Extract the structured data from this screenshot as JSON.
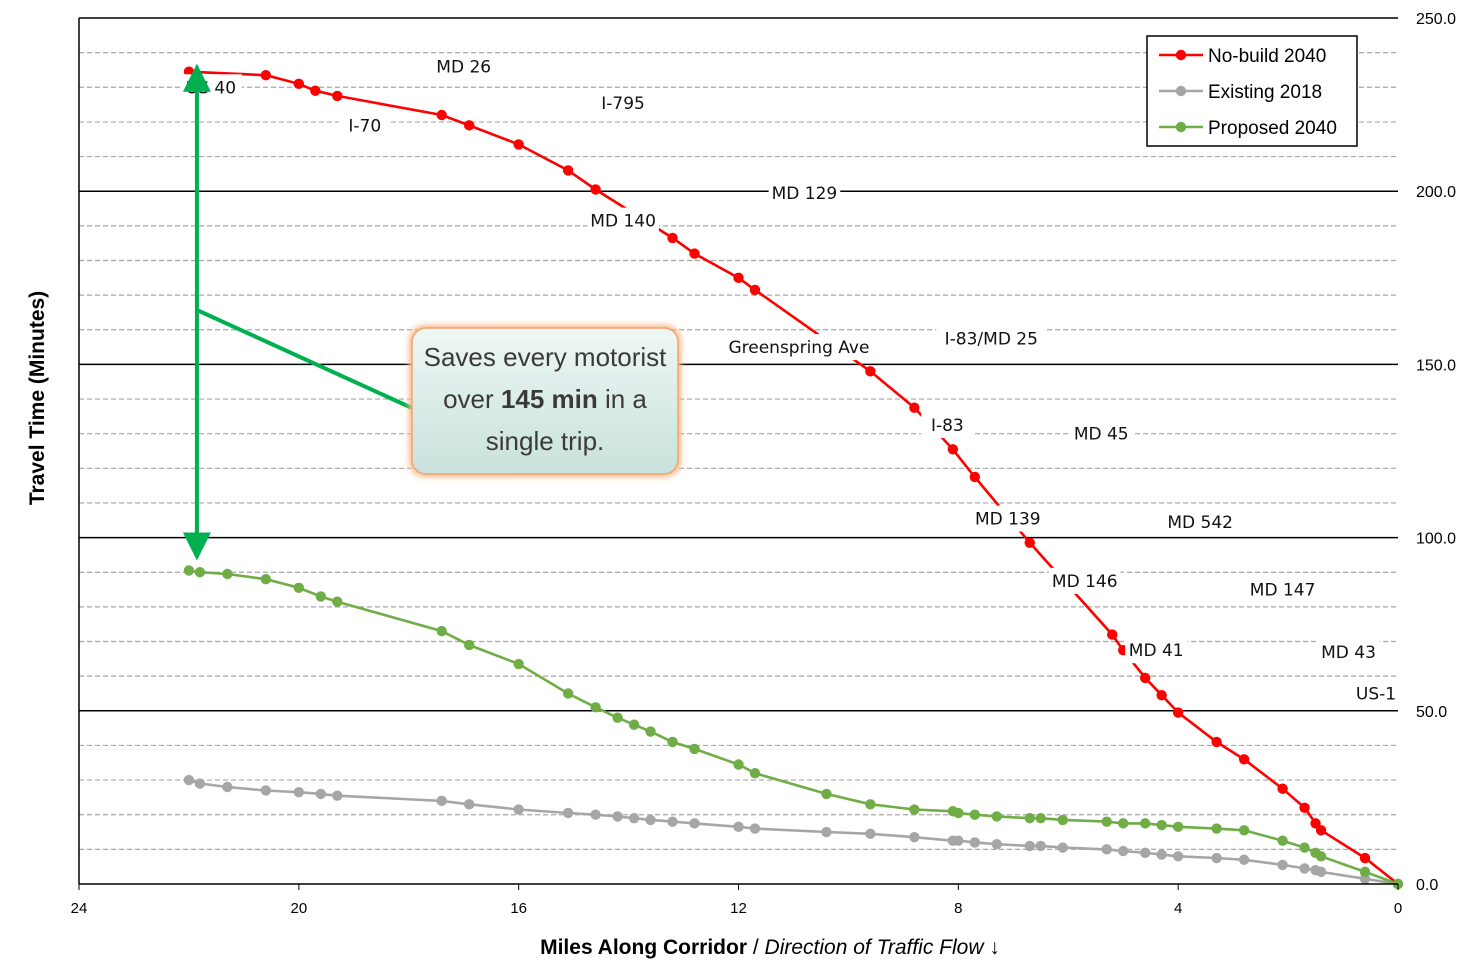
{
  "chart_data": {
    "type": "line",
    "title": "",
    "xlabel": {
      "bold": "Miles Along Corridor",
      "sep": " / ",
      "italic": "Direction of Traffic Flow",
      "arrow": "↓"
    },
    "ylabel": "Travel Time (Minutes)",
    "xlim": [
      24,
      0
    ],
    "ylim": [
      0,
      250
    ],
    "x_ticks": [
      "24",
      "20",
      "16",
      "12",
      "8",
      "4",
      "0"
    ],
    "y_ticks": [
      "0.0",
      "50.0",
      "100.0",
      "150.0",
      "200.0",
      "250.0"
    ],
    "grid": "major solid every 50, minor dashed every 10",
    "legend": {
      "position": "top-right",
      "entries": [
        "No-build 2040",
        "Existing 2018",
        "Proposed 2040"
      ]
    },
    "series": [
      {
        "name": "No-build 2040",
        "color": "#ff0000",
        "x": [
          22.0,
          20.6,
          20.0,
          19.7,
          19.3,
          17.4,
          16.9,
          16.0,
          15.1,
          14.6,
          13.2,
          12.8,
          12.0,
          11.7,
          9.6,
          8.8,
          8.1,
          7.7,
          6.7,
          5.2,
          5.0,
          4.6,
          4.3,
          4.0,
          3.3,
          2.8,
          2.1,
          1.7,
          1.5,
          1.4,
          0.6,
          0.0
        ],
        "y": [
          234.5,
          233.5,
          231.0,
          229.0,
          227.5,
          222.0,
          219.0,
          213.5,
          206.0,
          200.5,
          186.5,
          182.0,
          175.0,
          171.5,
          148.0,
          137.5,
          125.5,
          117.5,
          98.5,
          72.0,
          67.5,
          59.5,
          54.5,
          49.5,
          41.0,
          36.0,
          27.5,
          22.0,
          17.5,
          15.5,
          7.5,
          0.0
        ]
      },
      {
        "name": "Existing 2018",
        "color": "#a6a6a6",
        "x": [
          22.0,
          21.8,
          21.3,
          20.6,
          20.0,
          19.6,
          19.3,
          17.4,
          16.9,
          16.0,
          15.1,
          14.6,
          14.2,
          13.9,
          13.6,
          13.2,
          12.8,
          12.0,
          11.7,
          10.4,
          9.6,
          8.8,
          8.1,
          8.0,
          7.7,
          7.3,
          6.7,
          6.5,
          6.1,
          5.3,
          5.0,
          4.6,
          4.3,
          4.0,
          3.3,
          2.8,
          2.1,
          1.7,
          1.5,
          1.4,
          0.6,
          0.0
        ],
        "y": [
          30.0,
          29.0,
          28.0,
          27.0,
          26.5,
          26.0,
          25.5,
          24.0,
          23.0,
          21.5,
          20.5,
          20.0,
          19.5,
          19.0,
          18.5,
          18.0,
          17.5,
          16.5,
          16.0,
          15.0,
          14.5,
          13.5,
          12.5,
          12.5,
          12.0,
          11.5,
          11.0,
          11.0,
          10.5,
          10.0,
          9.5,
          9.0,
          8.5,
          8.0,
          7.5,
          7.0,
          5.5,
          4.5,
          4.0,
          3.5,
          1.5,
          0.0
        ]
      },
      {
        "name": "Proposed 2040",
        "color": "#70ad47",
        "x": [
          22.0,
          21.8,
          21.3,
          20.6,
          20.0,
          19.6,
          19.3,
          17.4,
          16.9,
          16.0,
          15.1,
          14.6,
          14.2,
          13.9,
          13.6,
          13.2,
          12.8,
          12.0,
          11.7,
          10.4,
          9.6,
          8.8,
          8.1,
          8.0,
          7.7,
          7.3,
          6.7,
          6.5,
          6.1,
          5.3,
          5.0,
          4.6,
          4.3,
          4.0,
          3.3,
          2.8,
          2.1,
          1.7,
          1.5,
          1.4,
          0.6,
          0.0
        ],
        "y": [
          90.5,
          90.0,
          89.5,
          88.0,
          85.5,
          83.0,
          81.5,
          73.0,
          69.0,
          63.5,
          55.0,
          51.0,
          48.0,
          46.0,
          44.0,
          41.0,
          39.0,
          34.5,
          32.0,
          26.0,
          23.0,
          21.5,
          21.0,
          20.5,
          20.0,
          19.5,
          19.0,
          19.0,
          18.5,
          18.0,
          17.5,
          17.5,
          17.0,
          16.5,
          16.0,
          15.5,
          12.5,
          10.5,
          9.0,
          8.0,
          3.5,
          0.0
        ]
      }
    ],
    "annotations": {
      "roads": [
        {
          "label": "US 40",
          "x": 21.6,
          "y": 230.0
        },
        {
          "label": "MD 26",
          "x": 17.0,
          "y": 236.0
        },
        {
          "label": "I-70",
          "x": 18.8,
          "y": 219.0
        },
        {
          "label": "I-795",
          "x": 14.1,
          "y": 225.5
        },
        {
          "label": "MD 129",
          "x": 10.8,
          "y": 199.5
        },
        {
          "label": "MD 140",
          "x": 14.1,
          "y": 191.5
        },
        {
          "label": "Greenspring Ave",
          "x": 10.9,
          "y": 155.0
        },
        {
          "label": "I-83/MD 25",
          "x": 7.4,
          "y": 157.5
        },
        {
          "label": "I-83",
          "x": 8.2,
          "y": 132.5
        },
        {
          "label": "MD 45",
          "x": 5.4,
          "y": 130.0
        },
        {
          "label": "MD 139",
          "x": 7.1,
          "y": 105.5
        },
        {
          "label": "MD 542",
          "x": 3.6,
          "y": 104.5
        },
        {
          "label": "MD 146",
          "x": 5.7,
          "y": 87.5
        },
        {
          "label": "MD 147",
          "x": 2.1,
          "y": 85.0
        },
        {
          "label": "MD 41",
          "x": 4.4,
          "y": 67.5
        },
        {
          "label": "MD 43",
          "x": 0.9,
          "y": 67.0
        },
        {
          "label": "US-1",
          "x": 0.4,
          "y": 55.0
        }
      ],
      "callout": {
        "lines": [
          [
            {
              "t": "Saves every motorist",
              "b": false
            }
          ],
          [
            {
              "t": "over ",
              "b": false
            },
            {
              "t": "145 min",
              "b": true
            },
            {
              "t": " in a",
              "b": false
            }
          ],
          [
            {
              "t": "single trip.",
              "b": false
            }
          ]
        ]
      },
      "arrow_color": "#00b050"
    }
  }
}
